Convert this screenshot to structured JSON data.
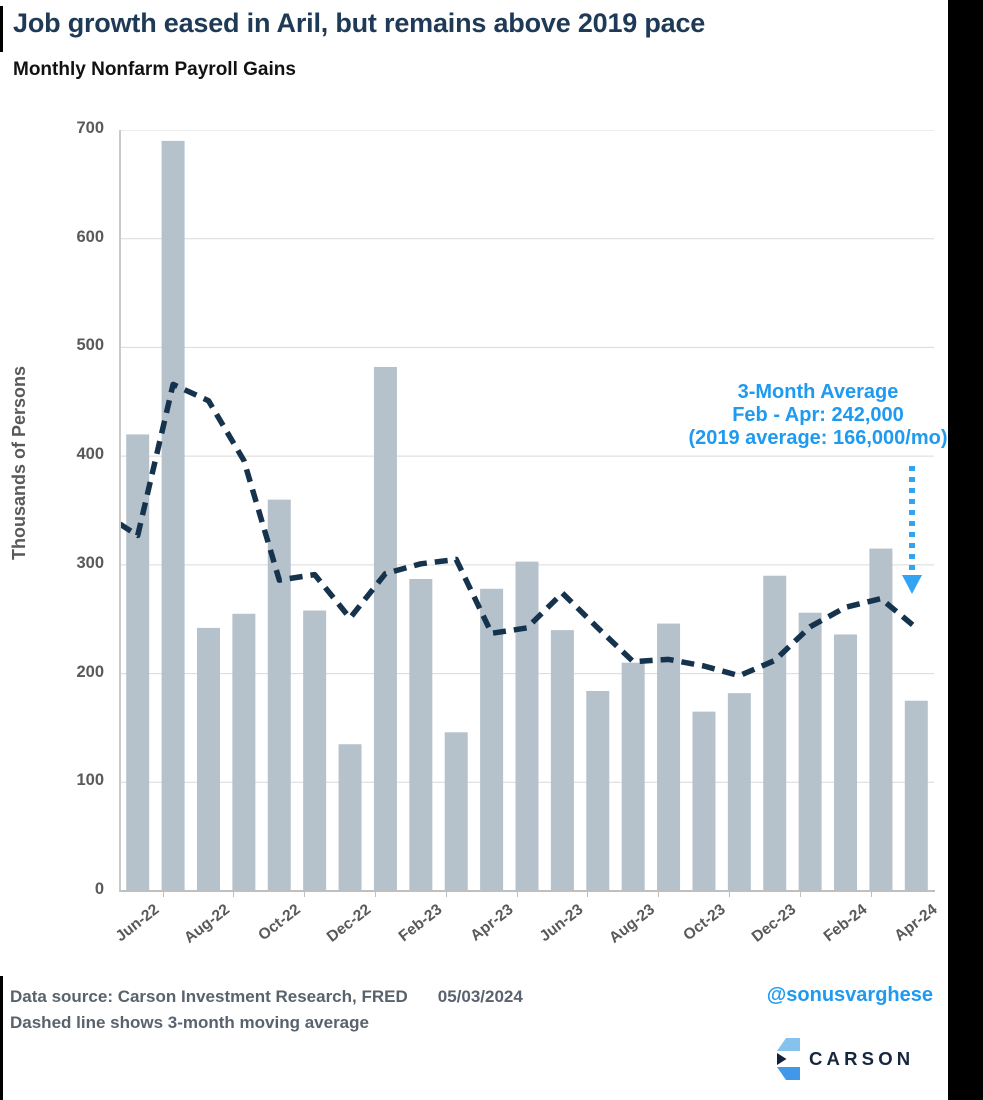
{
  "header": {
    "title": "Job growth eased in Aril, but remains above 2019 pace",
    "subtitle": "Monthly Nonfarm Payroll Gains"
  },
  "chart_data": {
    "type": "bar",
    "title": "Monthly Nonfarm Payroll Gains",
    "xlabel": "",
    "ylabel": "Thousands of Persons",
    "ylim": [
      0,
      700
    ],
    "ytick_interval": 100,
    "grid": true,
    "categories": [
      "Jun-22",
      "Jul-22",
      "Aug-22",
      "Sep-22",
      "Oct-22",
      "Nov-22",
      "Dec-22",
      "Jan-23",
      "Feb-23",
      "Mar-23",
      "Apr-23",
      "May-23",
      "Jun-23",
      "Jul-23",
      "Aug-23",
      "Sep-23",
      "Oct-23",
      "Nov-23",
      "Dec-23",
      "Jan-24",
      "Feb-24",
      "Mar-24",
      "Apr-24"
    ],
    "x_tick_labels": [
      "Jun-22",
      "Aug-22",
      "Oct-22",
      "Dec-22",
      "Feb-23",
      "Apr-23",
      "Jun-23",
      "Aug-23",
      "Oct-23",
      "Dec-23",
      "Feb-24",
      "Apr-24"
    ],
    "series": [
      {
        "name": "Monthly nonfarm payroll gains",
        "type": "bar",
        "values": [
          420,
          690,
          242,
          255,
          360,
          258,
          135,
          482,
          287,
          146,
          278,
          303,
          240,
          184,
          210,
          246,
          165,
          182,
          290,
          256,
          236,
          315,
          175
        ]
      },
      {
        "name": "3-month moving average (dashed line)",
        "type": "line",
        "style": "dashed",
        "lead_in_value": 348,
        "values": [
          327,
          466,
          451,
          396,
          286,
          291,
          251,
          292,
          301,
          305,
          237,
          242,
          274,
          242,
          211,
          213,
          207,
          198,
          212,
          243,
          261,
          269,
          242
        ]
      }
    ],
    "colors": {
      "bar": "#b6c2cb",
      "line": "#16334d",
      "grid": "#d9d9d9",
      "axis": "#bfbfbf",
      "tick_text": "#595959"
    }
  },
  "annotation": {
    "lines": [
      "3-Month Average",
      "Feb - Apr: 242,000",
      "(2019 average: 166,000/mo)"
    ],
    "arrow": "dotted-down-arrow",
    "arrow_color": "#33a4f2"
  },
  "footer": {
    "source": "Data source: Carson Investment Research, FRED",
    "date": "05/03/2024",
    "note": "Dashed line shows 3-month moving average",
    "handle": "@sonusvarghese",
    "logo_text": "CARSON"
  },
  "theme": {
    "accent_blue": "#1e9af0",
    "title_navy": "#1e3a57",
    "text_gray": "#595959",
    "footer_gray": "#59636d",
    "logo_navy": "#16263e"
  }
}
